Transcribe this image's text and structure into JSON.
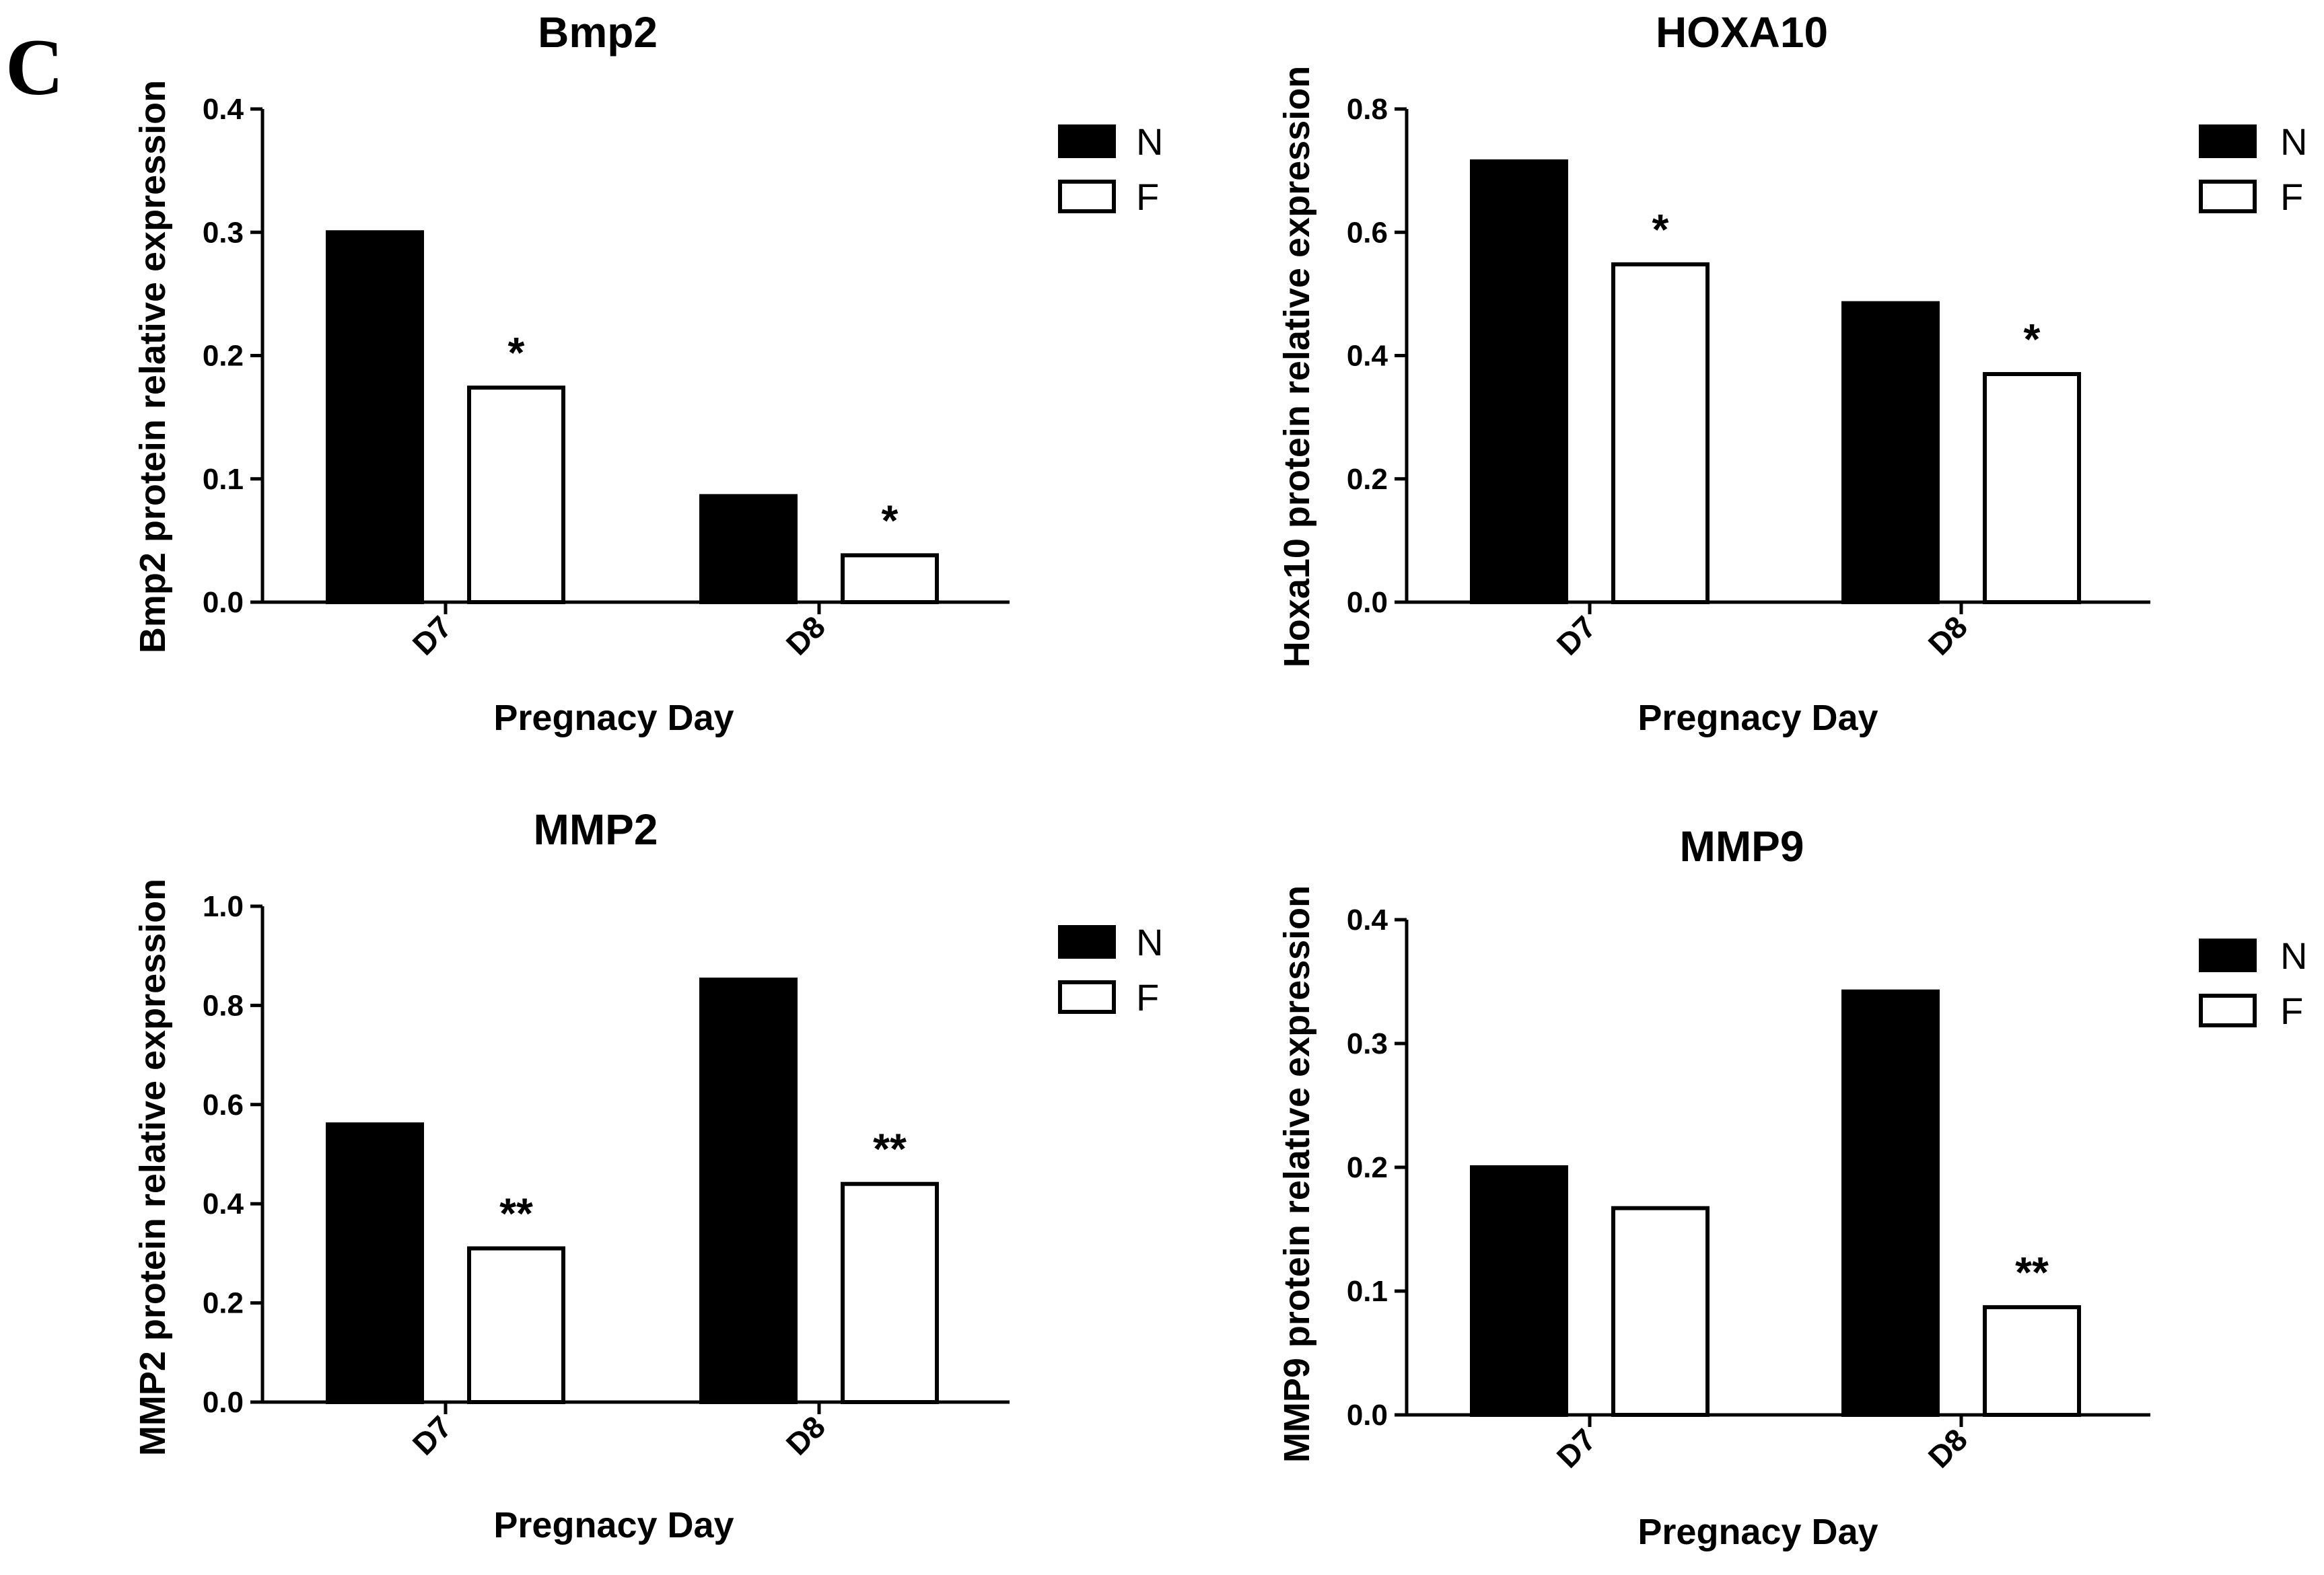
{
  "figure": {
    "panel_label": "C",
    "colors": {
      "series_N": "#000000",
      "series_F": "#ffffff",
      "stroke": "#000000"
    }
  },
  "chart_data": [
    {
      "type": "bar",
      "title": "Bmp2",
      "xlabel": "Pregnacy Day",
      "ylabel": "Bmp2 protein relative expression",
      "categories": [
        "D7",
        "D8"
      ],
      "series": [
        {
          "name": "N",
          "values": [
            0.3,
            0.086
          ]
        },
        {
          "name": "F",
          "values": [
            0.174,
            0.038
          ]
        }
      ],
      "significance": [
        {
          "category": "D7",
          "series": "F",
          "label": "*"
        },
        {
          "category": "D8",
          "series": "F",
          "label": "*"
        }
      ],
      "ylim": [
        0,
        0.4
      ],
      "yticks": [
        0.0,
        0.1,
        0.2,
        0.3,
        0.4
      ],
      "ytick_labels": [
        "0.0",
        "0.1",
        "0.2",
        "0.3",
        "0.4"
      ],
      "legend_position": "top-right",
      "grid": false
    },
    {
      "type": "bar",
      "title": "HOXA10",
      "xlabel": "Pregnacy Day",
      "ylabel": "Hoxa10 protein relative expression",
      "categories": [
        "D7",
        "D8"
      ],
      "series": [
        {
          "name": "N",
          "values": [
            0.715,
            0.485
          ]
        },
        {
          "name": "F",
          "values": [
            0.548,
            0.37
          ]
        }
      ],
      "significance": [
        {
          "category": "D7",
          "series": "F",
          "label": "*"
        },
        {
          "category": "D8",
          "series": "F",
          "label": "*"
        }
      ],
      "ylim": [
        0,
        0.8
      ],
      "yticks": [
        0.0,
        0.2,
        0.4,
        0.6,
        0.8
      ],
      "ytick_labels": [
        "0.0",
        "0.2",
        "0.4",
        "0.6",
        "0.8"
      ],
      "legend_position": "top-right",
      "grid": false
    },
    {
      "type": "bar",
      "title": "MMP2",
      "xlabel": "Pregnacy Day",
      "ylabel": "MMP2 protein relative expression",
      "categories": [
        "D7",
        "D8"
      ],
      "series": [
        {
          "name": "N",
          "values": [
            0.56,
            0.852
          ]
        },
        {
          "name": "F",
          "values": [
            0.31,
            0.44
          ]
        }
      ],
      "significance": [
        {
          "category": "D7",
          "series": "F",
          "label": "**"
        },
        {
          "category": "D8",
          "series": "F",
          "label": "**"
        }
      ],
      "ylim": [
        0,
        1.0
      ],
      "yticks": [
        0.0,
        0.2,
        0.4,
        0.6,
        0.8,
        1.0
      ],
      "ytick_labels": [
        "0.0",
        "0.2",
        "0.4",
        "0.6",
        "0.8",
        "1.0"
      ],
      "legend_position": "top-right",
      "grid": false
    },
    {
      "type": "bar",
      "title": "MMP9",
      "xlabel": "Pregnacy Day",
      "ylabel": "MMP9 protein relative expression",
      "categories": [
        "D7",
        "D8"
      ],
      "series": [
        {
          "name": "N",
          "values": [
            0.2,
            0.342
          ]
        },
        {
          "name": "F",
          "values": [
            0.167,
            0.087
          ]
        }
      ],
      "significance": [
        {
          "category": "D8",
          "series": "F",
          "label": "**"
        }
      ],
      "ylim": [
        0,
        0.4
      ],
      "yticks": [
        0.0,
        0.1,
        0.2,
        0.3,
        0.4
      ],
      "ytick_labels": [
        "0.0",
        "0.1",
        "0.2",
        "0.3",
        "0.4"
      ],
      "legend_position": "top-right",
      "grid": false
    }
  ]
}
